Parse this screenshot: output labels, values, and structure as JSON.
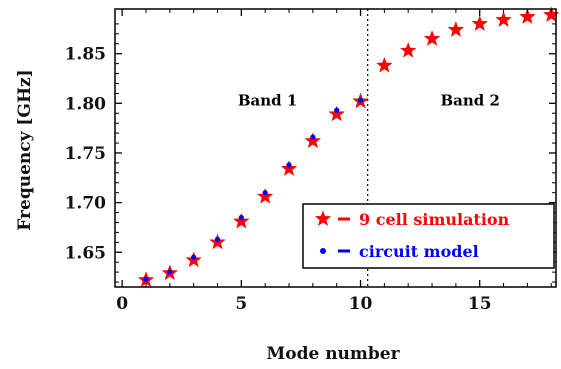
{
  "chart_data": {
    "type": "scatter",
    "xlabel": "Mode number",
    "ylabel": "Frequency [GHz]",
    "xlim": [
      -0.3,
      18.2
    ],
    "ylim": [
      1.615,
      1.895
    ],
    "xticks": [
      0,
      5,
      10,
      15
    ],
    "yticks": [
      1.65,
      1.7,
      1.75,
      1.8,
      1.85
    ],
    "ytick_labels": [
      "1.65",
      "1.70",
      "1.75",
      "1.80",
      "1.85"
    ],
    "divider_x": 10.3,
    "annotations": [
      {
        "text": "Band 1",
        "x": 6.1,
        "y": 1.803
      },
      {
        "text": "Band 2",
        "x": 14.6,
        "y": 1.803
      }
    ],
    "legend_placement": "bottom-right",
    "series": [
      {
        "name": "9 cell simulation",
        "legend_label": "9 cell simulation",
        "marker": "star",
        "color": "#ff0000",
        "x": [
          1,
          2,
          3,
          4,
          5,
          6,
          7,
          8,
          9,
          10,
          11,
          12,
          13,
          14,
          15,
          16,
          17,
          18
        ],
        "y": [
          1.622,
          1.629,
          1.642,
          1.66,
          1.681,
          1.706,
          1.734,
          1.762,
          1.789,
          1.802,
          1.838,
          1.853,
          1.865,
          1.874,
          1.88,
          1.884,
          1.887,
          1.889
        ]
      },
      {
        "name": "circuit model",
        "legend_label": "circuit model",
        "marker": "dot",
        "color": "#0000ff",
        "x": [
          1,
          2,
          3,
          4,
          5,
          6,
          7,
          8,
          9,
          10
        ],
        "y": [
          1.623,
          1.63,
          1.645,
          1.663,
          1.685,
          1.71,
          1.738,
          1.766,
          1.793,
          1.803
        ]
      }
    ]
  }
}
